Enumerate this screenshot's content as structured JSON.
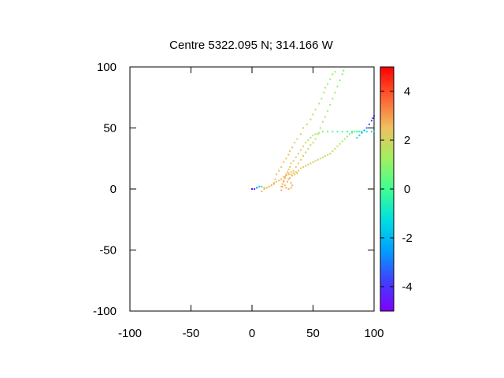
{
  "chart_data": {
    "type": "scatter",
    "title": "Centre 5322.095 N; 314.166  W",
    "xlabel": "",
    "ylabel": "",
    "xlim": [
      -100,
      100
    ],
    "ylim": [
      -100,
      100
    ],
    "x_ticks": [
      "-100",
      "-50",
      "0",
      "50",
      "100"
    ],
    "y_ticks": [
      "100",
      "50",
      "0",
      "-50",
      "-100"
    ],
    "grid": false,
    "colorbar": {
      "range": [
        -5,
        5
      ],
      "ticks": [
        "4",
        "2",
        "0",
        "-2",
        "-4"
      ],
      "palette": "rainbow"
    },
    "tracks": [
      {
        "points": [
          [
            0,
            0
          ],
          [
            2,
            0
          ],
          [
            4,
            1
          ],
          [
            6,
            2
          ],
          [
            8,
            2
          ],
          [
            10,
            1
          ],
          [
            12,
            1
          ],
          [
            14,
            2
          ],
          [
            16,
            3
          ],
          [
            18,
            4
          ],
          [
            19,
            8
          ],
          [
            20,
            12
          ],
          [
            22,
            15
          ],
          [
            24,
            18
          ],
          [
            26,
            22
          ],
          [
            28,
            25
          ],
          [
            30,
            28
          ],
          [
            31,
            31
          ],
          [
            33,
            34
          ],
          [
            35,
            38
          ],
          [
            37,
            41
          ],
          [
            40,
            45
          ],
          [
            42,
            50
          ],
          [
            45,
            53
          ],
          [
            48,
            57
          ],
          [
            50,
            61
          ],
          [
            52,
            65
          ],
          [
            55,
            70
          ],
          [
            57,
            74
          ],
          [
            59,
            79
          ],
          [
            60,
            83
          ],
          [
            62,
            86
          ],
          [
            64,
            90
          ],
          [
            66,
            94
          ],
          [
            68,
            96
          ]
        ],
        "values": [
          -5,
          -4,
          -3,
          -2,
          -1,
          2.5,
          2.5,
          2.5,
          2.5,
          2.5,
          2.5,
          2.5,
          2.5,
          2.5,
          2.5,
          2.5,
          2.5,
          2.4,
          2.3,
          2.2,
          2.2,
          2.1,
          2.0,
          1.9,
          1.8,
          1.7,
          1.6,
          1.5,
          1.4,
          1.3,
          1.2,
          1.2,
          1.1,
          1.0,
          1.0
        ]
      },
      {
        "points": [
          [
            24,
            2
          ],
          [
            25,
            4
          ],
          [
            26,
            7
          ],
          [
            27,
            10
          ],
          [
            28,
            12
          ],
          [
            30,
            13
          ],
          [
            32,
            14
          ],
          [
            34,
            15
          ],
          [
            36,
            18
          ],
          [
            38,
            21
          ],
          [
            40,
            24
          ],
          [
            42,
            27
          ],
          [
            44,
            30
          ],
          [
            46,
            33
          ],
          [
            48,
            36
          ],
          [
            50,
            38
          ],
          [
            52,
            41
          ],
          [
            54,
            45
          ],
          [
            56,
            50
          ],
          [
            58,
            55
          ],
          [
            60,
            59
          ],
          [
            62,
            64
          ],
          [
            64,
            69
          ],
          [
            66,
            74
          ],
          [
            68,
            79
          ],
          [
            70,
            84
          ],
          [
            72,
            89
          ],
          [
            74,
            94
          ],
          [
            75,
            97
          ]
        ],
        "values": [
          2.6,
          2.6,
          2.6,
          2.6,
          2.5,
          2.5,
          2.5,
          2.5,
          2.4,
          2.3,
          2.2,
          2.2,
          2.1,
          2.0,
          2.0,
          1.9,
          1.8,
          1.7,
          1.6,
          1.5,
          1.4,
          1.3,
          1.2,
          1.1,
          1.0,
          0.9,
          0.8,
          0.7,
          0.6
        ]
      },
      {
        "points": [
          [
            8,
            -2
          ],
          [
            10,
            0
          ],
          [
            12,
            1
          ],
          [
            14,
            2
          ],
          [
            16,
            3
          ],
          [
            18,
            5
          ],
          [
            20,
            6
          ],
          [
            22,
            7
          ],
          [
            24,
            8
          ],
          [
            26,
            10
          ],
          [
            28,
            12
          ],
          [
            29,
            14
          ],
          [
            30,
            16
          ],
          [
            31,
            18
          ],
          [
            32,
            21
          ],
          [
            34,
            23
          ],
          [
            36,
            26
          ],
          [
            38,
            29
          ],
          [
            40,
            32
          ],
          [
            42,
            35
          ],
          [
            44,
            38
          ],
          [
            46,
            40
          ],
          [
            48,
            42
          ],
          [
            50,
            44
          ],
          [
            52,
            45
          ],
          [
            55,
            46
          ],
          [
            58,
            47
          ],
          [
            62,
            47
          ],
          [
            66,
            47
          ],
          [
            70,
            47
          ],
          [
            74,
            47
          ],
          [
            78,
            47
          ],
          [
            82,
            47
          ],
          [
            86,
            47
          ],
          [
            90,
            47
          ],
          [
            94,
            47
          ],
          [
            98,
            47
          ],
          [
            100,
            47
          ]
        ],
        "values": [
          2.7,
          2.7,
          2.7,
          2.7,
          2.7,
          2.7,
          2.6,
          2.6,
          2.6,
          2.6,
          2.5,
          2.5,
          2.4,
          2.4,
          2.3,
          2.3,
          2.2,
          2.1,
          2.0,
          1.9,
          1.8,
          1.7,
          1.5,
          1.3,
          1.2,
          1.0,
          0.8,
          0.6,
          0.4,
          0.2,
          0.0,
          -0.2,
          -0.4,
          -0.6,
          -0.8,
          -1.0,
          -1.2,
          -1.3
        ]
      },
      {
        "points": [
          [
            30,
            12
          ],
          [
            32,
            12
          ],
          [
            34,
            13
          ],
          [
            36,
            14
          ],
          [
            38,
            15
          ],
          [
            40,
            17
          ],
          [
            42,
            18
          ],
          [
            44,
            19
          ],
          [
            46,
            20
          ],
          [
            48,
            21
          ],
          [
            50,
            22
          ],
          [
            52,
            23
          ],
          [
            54,
            24
          ],
          [
            56,
            25
          ],
          [
            58,
            26
          ],
          [
            60,
            27
          ],
          [
            62,
            28
          ],
          [
            64,
            29
          ],
          [
            66,
            31
          ],
          [
            68,
            33
          ],
          [
            70,
            35
          ],
          [
            72,
            37
          ],
          [
            74,
            39
          ],
          [
            76,
            41
          ],
          [
            78,
            43
          ],
          [
            80,
            45
          ],
          [
            82,
            46
          ],
          [
            84,
            47
          ],
          [
            86,
            47
          ],
          [
            88,
            47
          ]
        ],
        "values": [
          2.5,
          2.5,
          2.5,
          2.4,
          2.4,
          2.3,
          2.3,
          2.2,
          2.2,
          2.1,
          2.1,
          2.0,
          2.0,
          1.9,
          1.9,
          1.8,
          1.8,
          1.7,
          1.6,
          1.5,
          1.4,
          1.3,
          1.2,
          1.0,
          0.8,
          0.6,
          0.4,
          0.2,
          0.0,
          -0.2
        ]
      },
      {
        "points": [
          [
            24,
            -1
          ],
          [
            25,
            2
          ],
          [
            26,
            6
          ],
          [
            27,
            9
          ],
          [
            28,
            11
          ],
          [
            30,
            8
          ],
          [
            32,
            5
          ],
          [
            33,
            3
          ],
          [
            32,
            1
          ],
          [
            30,
            0
          ],
          [
            28,
            1
          ],
          [
            27,
            3
          ],
          [
            29,
            6
          ],
          [
            31,
            9
          ],
          [
            33,
            11
          ],
          [
            35,
            12
          ],
          [
            37,
            13
          ]
        ],
        "values": [
          2.7,
          2.7,
          2.7,
          2.7,
          2.7,
          2.7,
          2.7,
          2.7,
          2.7,
          2.7,
          2.7,
          2.7,
          2.6,
          2.6,
          2.6,
          2.5,
          2.5
        ]
      },
      {
        "points": [
          [
            86,
            42
          ],
          [
            88,
            44
          ],
          [
            90,
            46
          ],
          [
            92,
            48
          ],
          [
            94,
            50
          ],
          [
            96,
            53
          ],
          [
            98,
            56
          ],
          [
            99,
            58
          ],
          [
            100,
            60
          ]
        ],
        "values": [
          -1.0,
          -1.5,
          -2.0,
          -2.5,
          -3.0,
          -3.5,
          -3.8,
          -4.0,
          -4.2
        ]
      }
    ]
  }
}
